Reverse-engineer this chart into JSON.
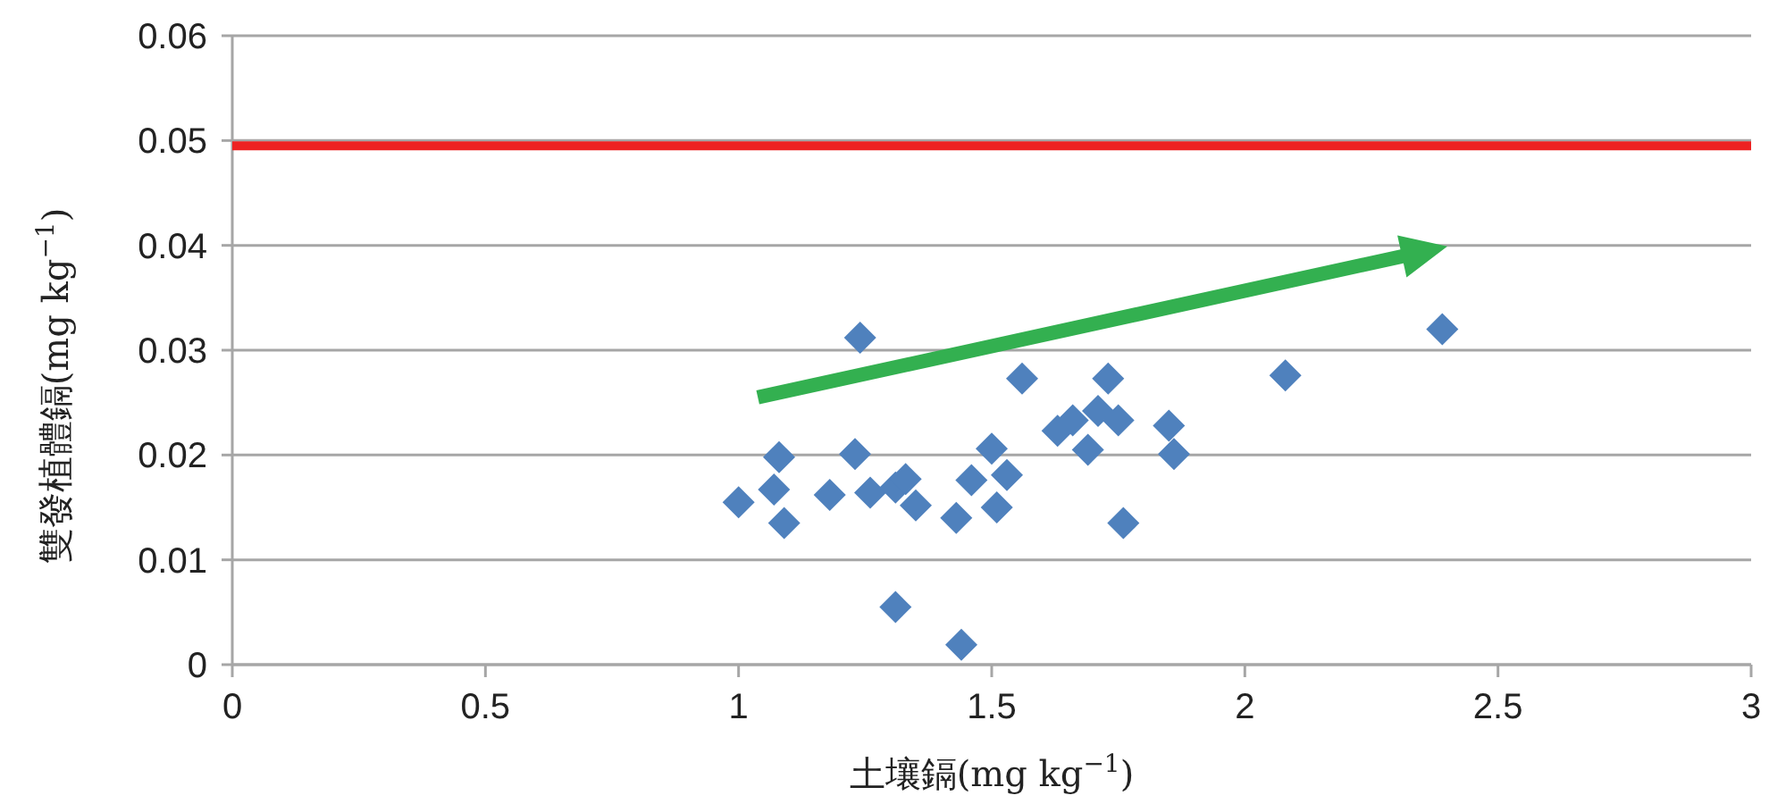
{
  "chart_data": {
    "type": "scatter",
    "xlabel": "土壤鎘(mg kg$^{−1}$)",
    "ylabel": "雙發植體鎘(mg kg$^{−1}$)",
    "xlim": [
      0,
      3
    ],
    "xticks": [
      0,
      0.5,
      1,
      1.5,
      2,
      2.5,
      3
    ],
    "ylim": [
      0,
      0.06
    ],
    "yticks": [
      0,
      0.01,
      0.02,
      0.03,
      0.04,
      0.05,
      0.06
    ],
    "grid": "y",
    "marker": "diamond",
    "series": [
      {
        "color": "#4f81bd",
        "x": [
          1.0,
          1.08,
          1.07,
          1.09,
          1.18,
          1.23,
          1.24,
          1.26,
          1.31,
          1.33,
          1.35,
          1.31,
          1.43,
          1.44,
          1.46,
          1.5,
          1.51,
          1.53,
          1.56,
          1.63,
          1.66,
          1.69,
          1.71,
          1.73,
          1.75,
          1.76,
          1.85,
          1.86,
          2.08,
          2.39
        ],
        "values": [
          0.0155,
          0.0198,
          0.0167,
          0.0135,
          0.0162,
          0.0201,
          0.0312,
          0.0164,
          0.0169,
          0.0177,
          0.0152,
          0.0055,
          0.014,
          0.0019,
          0.0176,
          0.0206,
          0.015,
          0.0181,
          0.0273,
          0.0223,
          0.0233,
          0.0205,
          0.0242,
          0.0273,
          0.0233,
          0.0135,
          0.0228,
          0.0201,
          0.0276,
          0.032
        ]
      }
    ],
    "ref_lines": [
      {
        "axis": "y",
        "value": 0.0495,
        "color": "#ee2222"
      }
    ]
  }
}
